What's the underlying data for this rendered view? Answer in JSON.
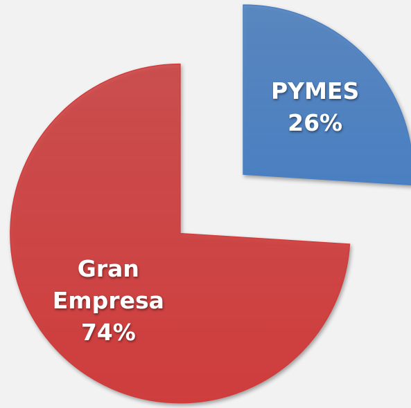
{
  "chart_data": {
    "type": "pie",
    "categories": [
      "PYMES",
      "Gran Empresa"
    ],
    "values": [
      26,
      74
    ],
    "value_labels": [
      "26%",
      "74%"
    ],
    "colors": [
      "#4a7fc1",
      "#cf3d3d"
    ]
  }
}
